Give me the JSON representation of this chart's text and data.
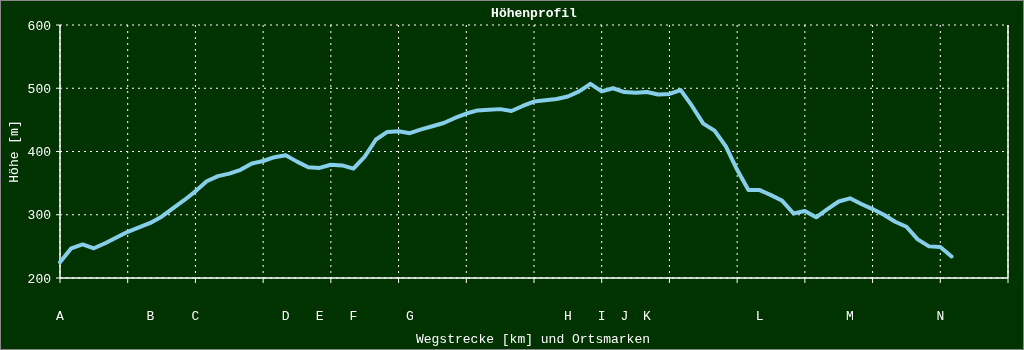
{
  "chart_data": {
    "type": "line",
    "title": "Höhenprofil",
    "xlabel": "Wegstrecke [km] und Ortsmarken",
    "ylabel": "Höhe [m]",
    "categories": [
      "A",
      null,
      null,
      null,
      null,
      null,
      null,
      null,
      "B",
      null,
      null,
      null,
      "C",
      null,
      null,
      null,
      null,
      null,
      null,
      null,
      "D",
      null,
      null,
      "E",
      null,
      null,
      "F",
      null,
      null,
      null,
      null,
      "G",
      null,
      null,
      null,
      null,
      null,
      null,
      null,
      null,
      null,
      null,
      null,
      null,
      null,
      "H",
      null,
      null,
      "I",
      null,
      "J",
      null,
      "K",
      null,
      null,
      null,
      null,
      null,
      null,
      null,
      null,
      null,
      "L",
      null,
      null,
      null,
      null,
      null,
      null,
      null,
      "M",
      null,
      null,
      null,
      null,
      null,
      null,
      null,
      "N",
      null
    ],
    "ylim": [
      200,
      600
    ],
    "yticks": [
      200,
      300,
      400,
      500,
      600
    ],
    "grid": true,
    "marker": "none",
    "line_style": "solid",
    "series": [
      {
        "color": "#87ceeb",
        "values": [
          225,
          247,
          253,
          247,
          255,
          264,
          273,
          280,
          287,
          297,
          310,
          323,
          337,
          353,
          361,
          365,
          371,
          381,
          385,
          391,
          394,
          384,
          375,
          374,
          379,
          378,
          373,
          392,
          419,
          431,
          432,
          429,
          435,
          440,
          445,
          453,
          460,
          465,
          466,
          467,
          464,
          472,
          479,
          481,
          483,
          487,
          495,
          507,
          495,
          500,
          494,
          493,
          494,
          490,
          491,
          497,
          472,
          444,
          433,
          408,
          371,
          339,
          339,
          331,
          322,
          302,
          306,
          296,
          309,
          321,
          326,
          317,
          309,
          300,
          289,
          281,
          261,
          250,
          249,
          234
        ]
      }
    ]
  }
}
